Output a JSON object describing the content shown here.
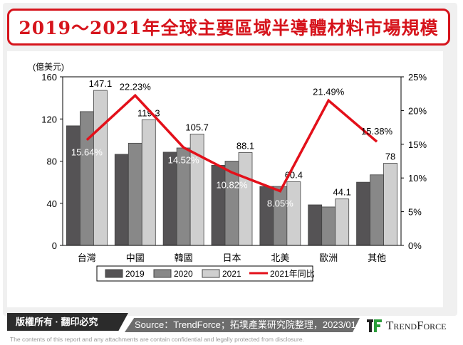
{
  "title": "2019～2021年全球主要區域半導體材料市場規模",
  "footer": {
    "copyright": "版權所有 · 翻印必究",
    "source": "Source：TrendForce；拓墣產業研究院整理，2023/01",
    "logo": "TrendForce",
    "disclaimer": "The contents of this report and any attachments are contain confidential and legally protected from disclosure."
  },
  "colors": {
    "s2019": "#555355",
    "s2020": "#888888",
    "s2021": "#cfcfcf",
    "yoy": "#e3101a",
    "accent": "#d6141c"
  },
  "chart_data": {
    "type": "bar+line",
    "ylabel": "(億美元)",
    "ylim": [
      0,
      160
    ],
    "yticks": [
      0,
      40,
      80,
      120,
      160
    ],
    "y2lim": [
      0,
      25
    ],
    "y2ticks": [
      "0%",
      "5%",
      "10%",
      "15%",
      "20%",
      "25%"
    ],
    "categories": [
      "台灣",
      "中國",
      "韓國",
      "日本",
      "北美",
      "歐洲",
      "其他"
    ],
    "series": [
      {
        "name": "2019",
        "values": [
          113.5,
          86.5,
          88.5,
          76,
          56,
          38.5,
          60
        ]
      },
      {
        "name": "2020",
        "values": [
          127,
          97,
          92.5,
          80,
          56,
          36.5,
          67
        ]
      },
      {
        "name": "2021",
        "values": [
          147.1,
          119.3,
          105.7,
          88.1,
          60.4,
          44.1,
          78
        ]
      }
    ],
    "line": {
      "name": "2021年同比",
      "values": [
        15.64,
        22.23,
        14.52,
        10.82,
        8.05,
        21.49,
        15.38
      ],
      "labels": [
        "15.64%",
        "22.23%",
        "14.52%",
        "10.82%",
        "8.05%",
        "21.49%",
        "15.38%"
      ]
    },
    "bar_labels": [
      "147.1",
      "119.3",
      "105.7",
      "88.1",
      "60.4",
      "44.1",
      "78"
    ],
    "legend": "bottom"
  }
}
